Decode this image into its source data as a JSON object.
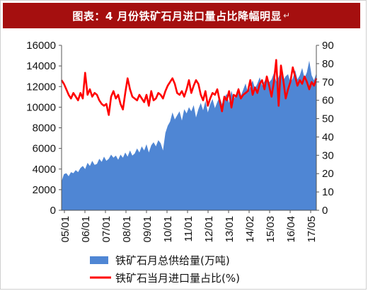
{
  "title": "图表：4 月份铁矿石月进口量占比降幅明显",
  "title_mark": "↵",
  "chart_data": {
    "type": "area+line",
    "x_tick_labels": [
      "05/01",
      "06/01",
      "07/01",
      "08/01",
      "09/01",
      "10/01",
      "11/01",
      "12/01",
      "13/01",
      "14/02",
      "15/03",
      "16/04",
      "17/05"
    ],
    "y_left": {
      "min": 0,
      "max": 16000,
      "ticks": [
        0,
        2000,
        4000,
        6000,
        8000,
        10000,
        12000,
        14000,
        16000
      ]
    },
    "y_right": {
      "min": 0,
      "max": 90,
      "ticks": [
        0,
        10,
        20,
        30,
        40,
        50,
        60,
        70,
        80,
        90
      ]
    },
    "grid": false,
    "legend_placement": "bottom",
    "series": [
      {
        "name": "铁矿石月总供给量(万吨)",
        "axis": "left",
        "style": "area",
        "color": "#4f86d4",
        "values": [
          2800,
          3500,
          3600,
          3300,
          3700,
          3600,
          3900,
          3700,
          4100,
          4300,
          4000,
          4600,
          4300,
          4800,
          4400,
          4500,
          5000,
          4700,
          5200,
          4800,
          5000,
          5400,
          5100,
          5300,
          4900,
          5400,
          5100,
          5600,
          5200,
          5800,
          5300,
          5500,
          6000,
          5600,
          6200,
          5800,
          6400,
          5600,
          6300,
          6600,
          6200,
          6800,
          6500,
          5800,
          7500,
          8200,
          8600,
          9500,
          8800,
          9200,
          9600,
          8700,
          9800,
          9400,
          10000,
          9600,
          10200,
          9000,
          9800,
          10400,
          9700,
          10600,
          9500,
          10300,
          10800,
          9900,
          10500,
          11000,
          10300,
          10900,
          11300,
          10400,
          11600,
          10800,
          11200,
          11900,
          11100,
          11700,
          12300,
          11400,
          12000,
          12600,
          11800,
          12300,
          12900,
          12100,
          12500,
          13000,
          12400,
          12700,
          13300,
          12500,
          12900,
          13500,
          12600,
          13000,
          13200,
          12400,
          12800,
          13600,
          12700,
          13100,
          13800,
          12800,
          13400,
          14500,
          13100,
          12600,
          13300
        ]
      },
      {
        "name": "铁矿石当月进口量占比(%)",
        "axis": "right",
        "style": "line",
        "color": "#ff0000",
        "values": [
          71,
          69,
          66,
          63,
          61,
          64,
          62,
          60,
          64,
          61,
          75,
          63,
          66,
          62,
          64,
          63,
          60,
          58,
          57,
          58,
          52,
          62,
          65,
          61,
          63,
          58,
          55,
          64,
          72,
          66,
          62,
          61,
          60,
          63,
          61,
          59,
          63,
          57,
          65,
          60,
          61,
          64,
          63,
          61,
          65,
          68,
          70,
          72,
          69,
          64,
          63,
          65,
          62,
          66,
          71,
          64,
          68,
          71,
          69,
          63,
          60,
          65,
          57,
          61,
          64,
          63,
          66,
          60,
          54,
          62,
          60,
          65,
          56,
          63,
          62,
          66,
          61,
          63,
          64,
          65,
          71,
          63,
          67,
          64,
          69,
          71,
          66,
          73,
          68,
          62,
          70,
          82,
          57,
          79,
          71,
          61,
          66,
          70,
          78,
          73,
          68,
          71,
          69,
          73,
          70,
          66,
          70,
          68,
          72
        ]
      }
    ]
  }
}
